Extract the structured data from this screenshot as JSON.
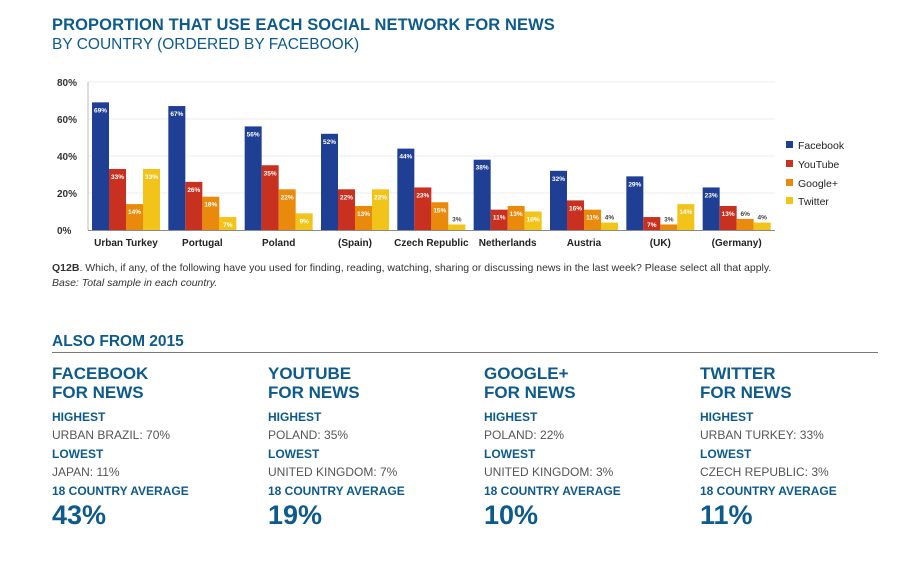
{
  "header": {
    "title": "PROPORTION THAT USE EACH SOCIAL NETWORK FOR NEWS",
    "subtitle": "BY COUNTRY (ORDERED BY FACEBOOK)"
  },
  "chart_data": {
    "type": "bar",
    "title": "PROPORTION THAT USE EACH SOCIAL NETWORK FOR NEWS",
    "subtitle": "BY COUNTRY (ORDERED BY FACEBOOK)",
    "xlabel": "",
    "ylabel": "",
    "ylim": [
      0,
      80
    ],
    "yticks": [
      0,
      20,
      40,
      60,
      80
    ],
    "ytick_labels": [
      "0%",
      "20%",
      "40%",
      "60%",
      "80%"
    ],
    "grid": true,
    "legend_position": "right",
    "categories": [
      "Urban Turkey",
      "Portugal",
      "Poland",
      "(Spain)",
      "Czech Republic",
      "Netherlands",
      "Austria",
      "(UK)",
      "(Germany)"
    ],
    "series": [
      {
        "name": "Facebook",
        "color": "#1f3f94",
        "values": [
          69,
          67,
          56,
          52,
          44,
          38,
          32,
          29,
          23
        ]
      },
      {
        "name": "YouTube",
        "color": "#c8301f",
        "values": [
          33,
          26,
          35,
          22,
          23,
          11,
          16,
          7,
          13
        ]
      },
      {
        "name": "Google+",
        "color": "#e98a0c",
        "values": [
          14,
          18,
          22,
          13,
          15,
          13,
          11,
          3,
          6
        ]
      },
      {
        "name": "Twitter",
        "color": "#f2c41a",
        "values": [
          33,
          7,
          9,
          22,
          3,
          10,
          4,
          14,
          4
        ]
      }
    ],
    "value_label_suffix": "%"
  },
  "footnote": {
    "question_code": "Q12B",
    "question_text": ". Which, if any, of the following have you used for finding, reading, watching, sharing or discussing news in the last week? Please select all that apply.",
    "base": "Base: Total sample in each country."
  },
  "also": {
    "heading": "ALSO FROM 2015",
    "columns": [
      {
        "title1": "FACEBOOK",
        "title2": "FOR NEWS",
        "highest_label": "HIGHEST",
        "highest": "URBAN BRAZIL: 70%",
        "lowest_label": "LOWEST",
        "lowest": "JAPAN: 11%",
        "average_label": "18 COUNTRY AVERAGE",
        "average": "43%"
      },
      {
        "title1": "YOUTUBE",
        "title2": "FOR NEWS",
        "highest_label": "HIGHEST",
        "highest": "POLAND: 35%",
        "lowest_label": "LOWEST",
        "lowest": "UNITED KINGDOM: 7%",
        "average_label": "18 COUNTRY AVERAGE",
        "average": "19%"
      },
      {
        "title1": "GOOGLE+",
        "title2": "FOR NEWS",
        "highest_label": "HIGHEST",
        "highest": "POLAND: 22%",
        "lowest_label": "LOWEST",
        "lowest": "UNITED KINGDOM: 3%",
        "average_label": "18 COUNTRY AVERAGE",
        "average": "10%"
      },
      {
        "title1": "TWITTER",
        "title2": "FOR NEWS",
        "highest_label": "HIGHEST",
        "highest": "URBAN TURKEY: 33%",
        "lowest_label": "LOWEST",
        "lowest": "CZECH REPUBLIC: 3%",
        "average_label": "18 COUNTRY AVERAGE",
        "average": "11%"
      }
    ]
  }
}
